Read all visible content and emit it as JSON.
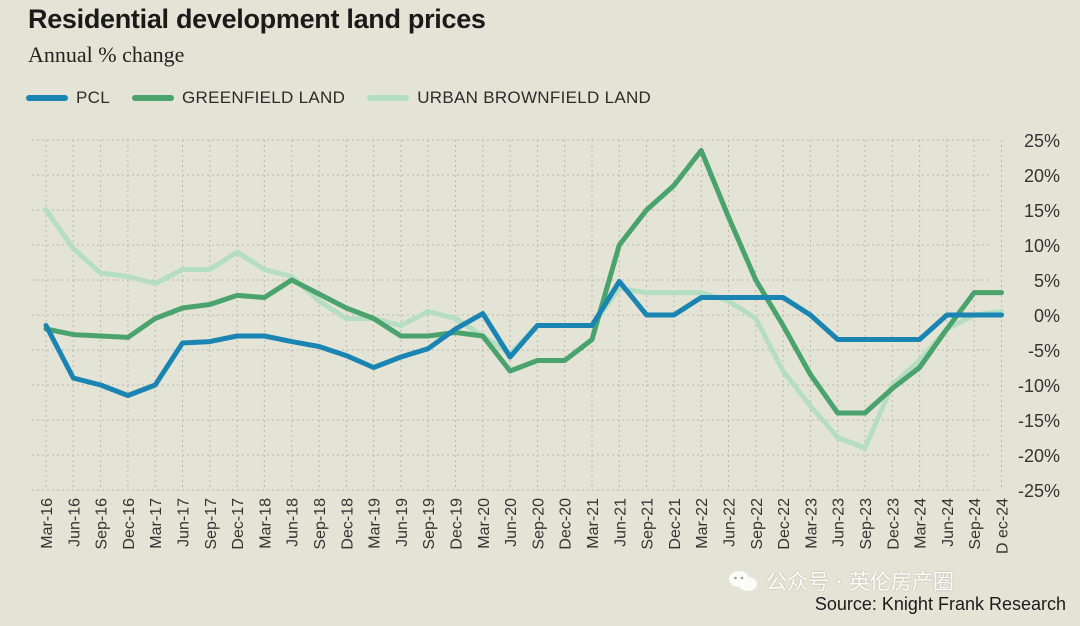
{
  "title": "Residential development land prices",
  "subtitle": "Annual % change",
  "source": "Source: Knight Frank Research",
  "watermark": "公众号 · 英伦房产圈",
  "chart_data": {
    "type": "line",
    "x": [
      "Mar-16",
      "Jun-16",
      "Sep-16",
      "Dec-16",
      "Mar-17",
      "Jun-17",
      "Sep-17",
      "Dec-17",
      "Mar-18",
      "Jun-18",
      "Sep-18",
      "Dec-18",
      "Mar-19",
      "Jun-19",
      "Sep-19",
      "Dec-19",
      "Mar-20",
      "Jun-20",
      "Sep-20",
      "Dec-20",
      "Mar-21",
      "Jun-21",
      "Sep-21",
      "Dec-21",
      "Mar-22",
      "Jun-22",
      "Sep-22",
      "Dec-22",
      "Mar-23",
      "Jun-23",
      "Sep-23",
      "Dec-23",
      "Mar-24",
      "Jun-24",
      "Sep-24",
      "Dec-24"
    ],
    "xlabels": [
      "Mar-16",
      "Jun-16",
      "Sep-16",
      "Dec-16",
      "Mar-17",
      "Jun-17",
      "Sep-17",
      "Dec-17",
      "Mar-18",
      "Jun-18",
      "Sep-18",
      "Dec-18",
      "Mar-19",
      "Jun-19",
      "Sep-19",
      "Dec-19",
      "Mar-20",
      "Jun-20",
      "Sep-20",
      "Dec-20",
      "Mar-21",
      "Jun-21",
      "Sep-21",
      "Dec-21",
      "Mar-22",
      "Jun-22",
      "Sep-22",
      "Dec-22",
      "Mar-23",
      "Jun-23",
      "Sep-23",
      "Dec-23",
      "Mar-24",
      "Jun-24",
      "Sep-24",
      "D ec-24"
    ],
    "yticks": [
      "25%",
      "20%",
      "15%",
      "10%",
      "5%",
      "0%",
      "-5%",
      "-10%",
      "-15%",
      "-20%",
      "-25%"
    ],
    "ylim": [
      -25,
      25
    ],
    "grid": true,
    "legend_position": "top-left",
    "series": [
      {
        "name": "PCL",
        "color": "#1a85b3",
        "values": [
          -1.5,
          -9,
          -10,
          -11.5,
          -10,
          -4,
          -3.8,
          -3,
          -3,
          -3.8,
          -4.5,
          -5.8,
          -7.5,
          -6,
          -4.8,
          -2,
          0.2,
          -6,
          -1.5,
          -1.5,
          -1.5,
          4.8,
          0,
          0,
          2.5,
          2.5,
          2.5,
          2.5,
          0,
          -3.5,
          -3.5,
          -3.5,
          -3.5,
          0,
          0,
          0
        ]
      },
      {
        "name": "GREENFIELD LAND",
        "color": "#4aa36d",
        "values": [
          -2,
          -2.8,
          -3,
          -3.2,
          -0.5,
          1,
          1.5,
          2.8,
          2.5,
          5,
          3,
          1,
          -0.5,
          -3,
          -3,
          -2.5,
          -3,
          -8,
          -6.5,
          -6.5,
          -3.5,
          10,
          15,
          18.5,
          23.5,
          14,
          5,
          -1.5,
          -8.5,
          -14,
          -14,
          -10.5,
          -7.5,
          -2,
          3.2,
          3.2
        ]
      },
      {
        "name": "URBAN BROWNFIELD LAND",
        "color": "#b5ddc2",
        "values": [
          15,
          9.5,
          6,
          5.5,
          4.5,
          6.5,
          6.5,
          9,
          6.5,
          5.5,
          2,
          -0.5,
          -0.5,
          -1.5,
          0.5,
          -0.5,
          -3,
          -5.5,
          -1.5,
          -1.5,
          -1.5,
          3.8,
          3.2,
          3.2,
          3.2,
          2,
          -0.5,
          -8,
          -13,
          -17.5,
          -19,
          -10,
          -6.5,
          -2,
          0,
          0.5
        ]
      }
    ]
  }
}
